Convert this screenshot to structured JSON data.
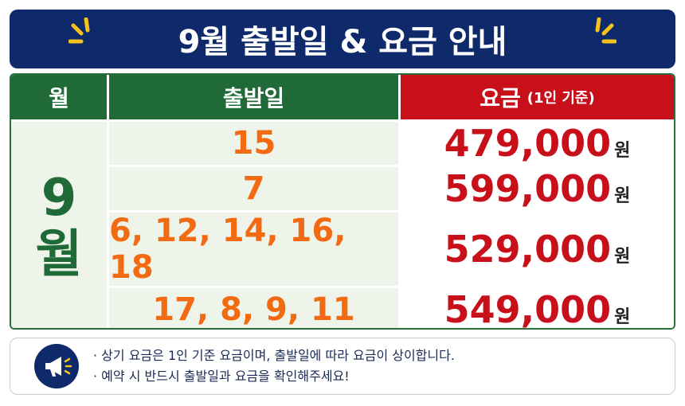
{
  "header": {
    "title": "9월 출발일 & 요금 안내"
  },
  "table": {
    "columns": [
      "월",
      "출발일",
      {
        "main": "요금",
        "sub": "(1인 기준)"
      }
    ],
    "month": {
      "number": "9",
      "unit": "월"
    },
    "rows": [
      {
        "dates": "15",
        "price": "479,000",
        "unit": "원"
      },
      {
        "dates": "7",
        "price": "599,000",
        "unit": "원"
      },
      {
        "dates": "6, 12, 14, 16, 18",
        "price": "529,000",
        "unit": "원"
      },
      {
        "dates": "17, 8, 9, 11",
        "price": "549,000",
        "unit": "원"
      }
    ]
  },
  "notes": [
    "상기 요금은 1인 기준 요금이며, 출발일에 따라 요금이 상이합니다.",
    "예약 시 반드시 출발일과 요금을 확인해주세요!"
  ]
}
